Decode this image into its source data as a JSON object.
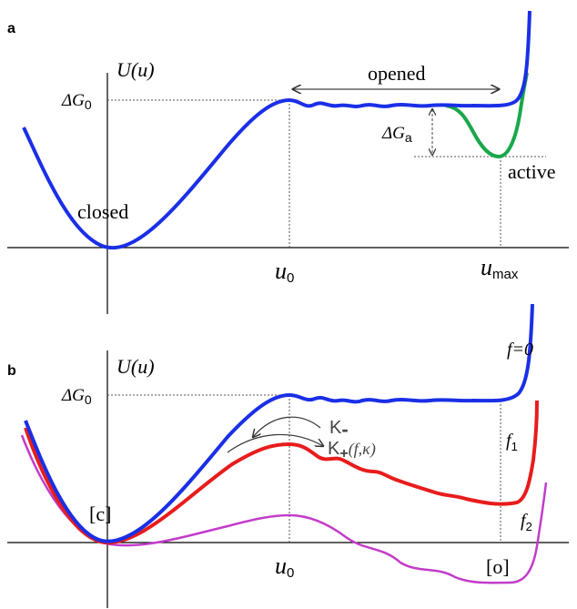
{
  "panel_a": {
    "letter": "a",
    "ylabel": "U(u)",
    "delta_g0": {
      "base": "ΔG",
      "sub": "0"
    },
    "delta_ga": {
      "base": "ΔG",
      "sub": "a"
    },
    "state_closed": "closed",
    "state_opened": "opened",
    "state_active": "active",
    "tick_u0": {
      "base": "u",
      "sub": "0"
    },
    "tick_umax": {
      "base": "u",
      "sub": "max"
    }
  },
  "panel_b": {
    "letter": "b",
    "ylabel": "U(u)",
    "delta_g0": {
      "base": "ΔG",
      "sub": "0"
    },
    "curve_f0": "f=0",
    "curve_f1": {
      "base": "f",
      "sub": "1"
    },
    "curve_f2": {
      "base": "f",
      "sub": "2"
    },
    "state_c": "[c]",
    "state_o": "[o]",
    "tick_u0": {
      "base": "u",
      "sub": "0"
    },
    "k_minus": {
      "base": "K",
      "sub": "-"
    },
    "k_plus": {
      "base": "K",
      "sub": "+",
      "args": "(f,κ)"
    }
  },
  "colors": {
    "blue": "#1a2fe6",
    "green": "#1aa84a",
    "red": "#e81c1c",
    "magenta": "#c23cc9",
    "axis": "#000000",
    "guide": "#555555"
  }
}
